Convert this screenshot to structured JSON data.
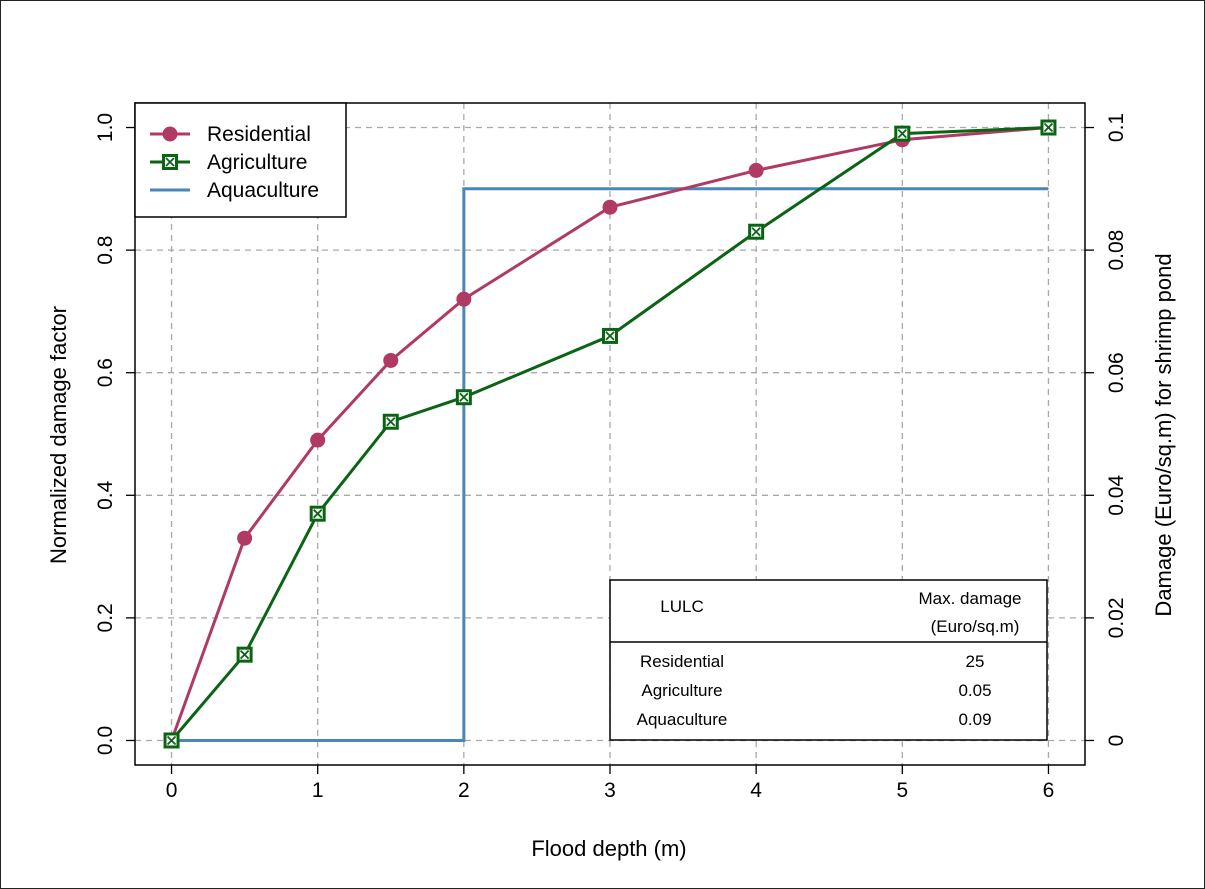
{
  "chart_data": {
    "type": "line",
    "xlabel": "Flood depth (m)",
    "ylabel": "Normalized damage factor",
    "ylabel_right": "Damage (Euro/sq.m) for shrimp pond",
    "xlim": [
      -0.25,
      6.25
    ],
    "ylim": [
      -0.04,
      1.04
    ],
    "ylim_right": [
      -0.004,
      0.104
    ],
    "x_ticks": [
      0,
      1,
      2,
      3,
      4,
      5,
      6
    ],
    "x_tick_labels": [
      "0",
      "1",
      "2",
      "3",
      "4",
      "5",
      "6"
    ],
    "y_ticks": [
      0.0,
      0.2,
      0.4,
      0.6,
      0.8,
      1.0
    ],
    "y_tick_labels": [
      "0.0",
      "0.2",
      "0.4",
      "0.6",
      "0.8",
      "1.0"
    ],
    "y_right_ticks": [
      0,
      0.02,
      0.04,
      0.06,
      0.08,
      0.1
    ],
    "y_right_tick_labels": [
      "0",
      "0.02",
      "0.04",
      "0.06",
      "0.08",
      "0.1"
    ],
    "grid": true,
    "legend_position": "top-left",
    "series": [
      {
        "name": "Residential",
        "color": "#b03a64",
        "marker": "circle",
        "x": [
          0,
          0.5,
          1,
          1.5,
          2,
          3,
          4,
          5,
          6
        ],
        "values": [
          0.0,
          0.33,
          0.49,
          0.62,
          0.72,
          0.87,
          0.93,
          0.98,
          1.0
        ]
      },
      {
        "name": "Agriculture",
        "color": "#0a6414",
        "marker": "square-x",
        "x": [
          0,
          0.5,
          1,
          1.5,
          2,
          3,
          4,
          5,
          6
        ],
        "values": [
          0.0,
          0.14,
          0.37,
          0.52,
          0.56,
          0.66,
          0.83,
          0.99,
          1.0
        ]
      },
      {
        "name": "Aquaculture",
        "color": "#4a86b8",
        "marker": "none",
        "axis": "right",
        "step": true,
        "x": [
          0,
          2,
          2,
          6
        ],
        "values": [
          0,
          0,
          0.09,
          0.09
        ]
      }
    ],
    "table": {
      "header": [
        "LULC",
        "Max. damage",
        "(Euro/sq.m)"
      ],
      "rows": [
        [
          "Residential",
          "25"
        ],
        [
          "Agriculture",
          "0.05"
        ],
        [
          "Aquaculture",
          "0.09"
        ]
      ]
    }
  }
}
